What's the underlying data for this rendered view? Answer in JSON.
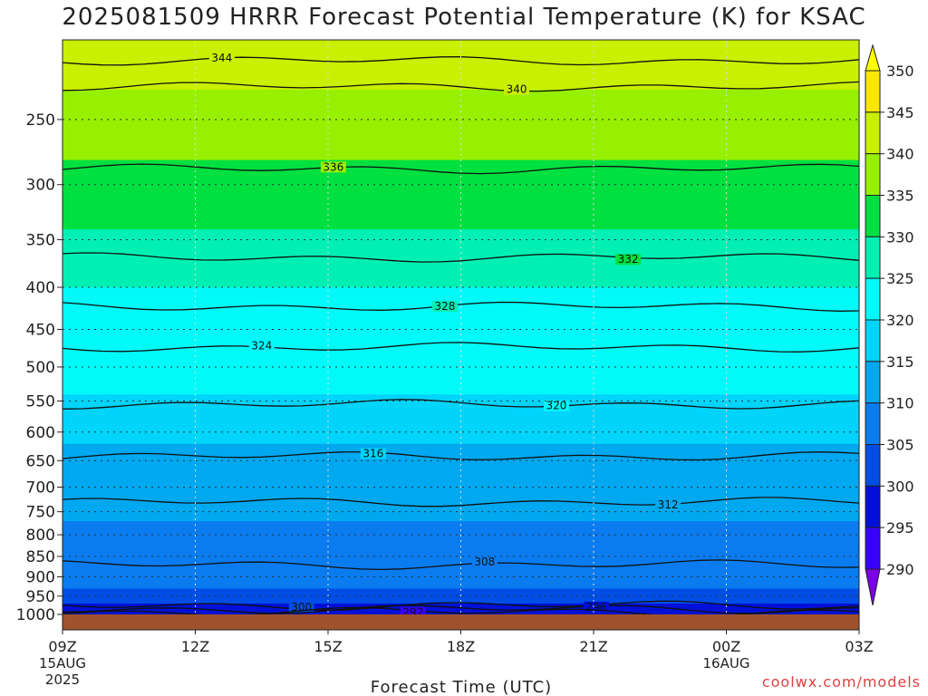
{
  "chart_data": {
    "type": "heatmap",
    "title": "2025081509 HRRR Forecast Potential Temperature (K) for KSAC",
    "xlabel": "Forecast Time (UTC)",
    "ylabel": "",
    "y_scale": "log-pressure",
    "y_range": [
      1000,
      200
    ],
    "x_ticks": [
      "09Z",
      "12Z",
      "15Z",
      "18Z",
      "21Z",
      "00Z",
      "03Z"
    ],
    "x_subtitles": [
      {
        "tick": "09Z",
        "lines": [
          "15AUG",
          "2025"
        ]
      },
      {
        "tick": "00Z",
        "lines": [
          "16AUG"
        ]
      }
    ],
    "y_ticks": [
      250,
      300,
      350,
      400,
      450,
      500,
      550,
      600,
      650,
      700,
      750,
      800,
      850,
      900,
      950,
      1000
    ],
    "colorbar": {
      "levels": [
        290,
        295,
        300,
        305,
        310,
        315,
        320,
        325,
        330,
        335,
        340,
        345,
        350
      ],
      "colors": [
        "#7a00e6",
        "#3700ff",
        "#0010d8",
        "#004ee6",
        "#0a7cf0",
        "#00a8f0",
        "#00d4fa",
        "#00fafa",
        "#00f0b4",
        "#00e040",
        "#96f000",
        "#c8f000",
        "#fae600",
        "#ffff00"
      ]
    },
    "bands": [
      {
        "p": 990,
        "value": 295
      },
      {
        "p": 970,
        "value": 300
      },
      {
        "p": 930,
        "value": 305
      },
      {
        "p": 840,
        "value": 307
      },
      {
        "p": 770,
        "value": 310
      },
      {
        "p": 700,
        "value": 313
      },
      {
        "p": 620,
        "value": 317
      },
      {
        "p": 540,
        "value": 321
      },
      {
        "p": 470,
        "value": 324
      },
      {
        "p": 400,
        "value": 328
      },
      {
        "p": 340,
        "value": 332
      },
      {
        "p": 280,
        "value": 337
      },
      {
        "p": 230,
        "value": 340
      },
      {
        "p": 210,
        "value": 344
      },
      {
        "p": 200,
        "value": 347
      }
    ],
    "contours": [
      {
        "value": 344,
        "p": 212,
        "label": "344"
      },
      {
        "value": 340,
        "p": 228,
        "label": "340"
      },
      {
        "value": 336,
        "p": 287,
        "label": "336"
      },
      {
        "value": 332,
        "p": 368,
        "label": "332"
      },
      {
        "value": 328,
        "p": 422,
        "label": "328"
      },
      {
        "value": 324,
        "p": 473,
        "label": "324"
      },
      {
        "value": 320,
        "p": 555,
        "label": "320"
      },
      {
        "value": 316,
        "p": 642,
        "label": "316"
      },
      {
        "value": 312,
        "p": 730,
        "label": "312"
      },
      {
        "value": 308,
        "p": 870,
        "label": "308"
      },
      {
        "value": 300,
        "p": 975,
        "label": "300"
      },
      {
        "value": 296,
        "p": 985,
        "label": "296"
      },
      {
        "value": 292,
        "p": 993,
        "label": "292"
      }
    ]
  },
  "credit": "coolwx.com/models"
}
